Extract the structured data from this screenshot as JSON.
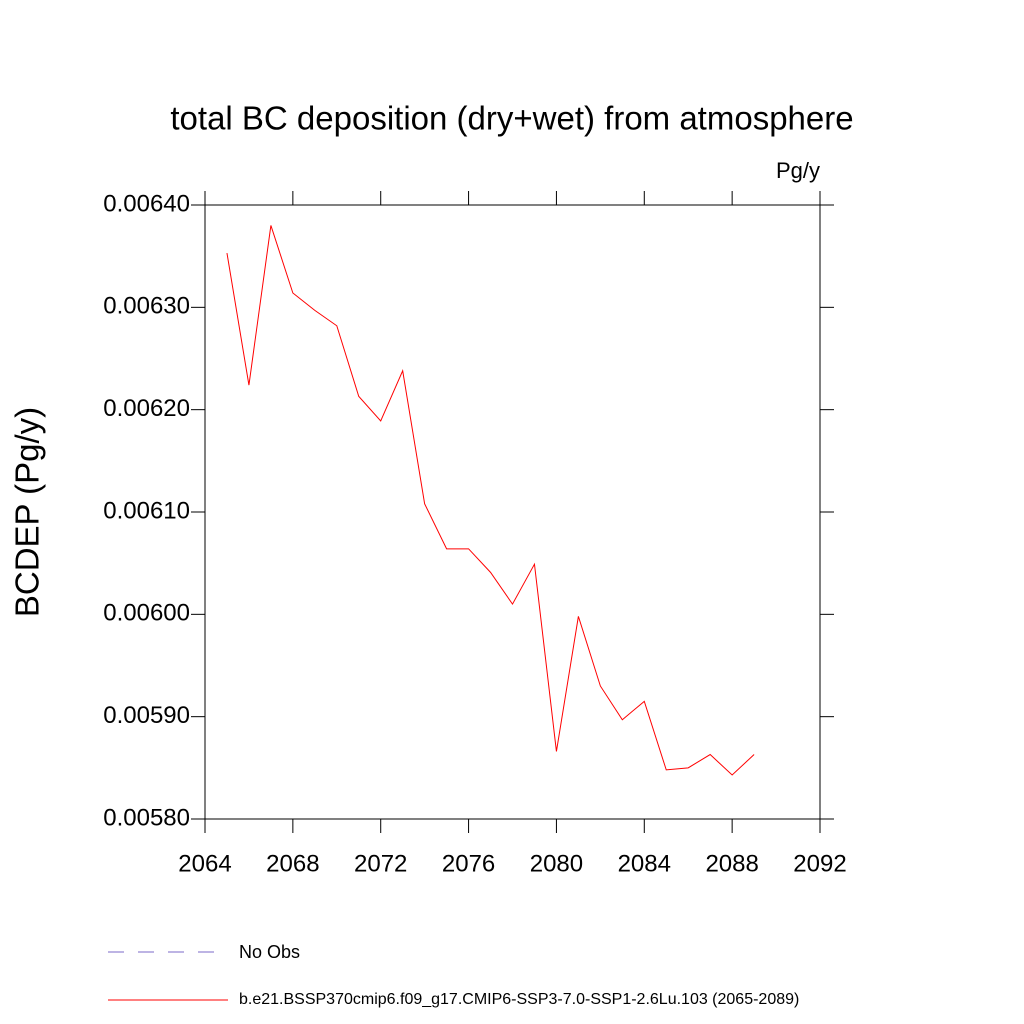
{
  "chart_data": {
    "type": "line",
    "title": "total BC deposition (dry+wet) from atmosphere",
    "units": "Pg/y",
    "ylabel": "BCDEP  (Pg/y)",
    "x": [
      2065,
      2066,
      2067,
      2068,
      2069,
      2070,
      2071,
      2072,
      2073,
      2074,
      2075,
      2076,
      2077,
      2078,
      2079,
      2080,
      2081,
      2082,
      2083,
      2084,
      2085,
      2086,
      2087,
      2088,
      2089
    ],
    "series": [
      {
        "name": "b.e21.BSSP370cmip6.f09_g17.CMIP6-SSP3-7.0-SSP1-2.6Lu.103 (2065-2089)",
        "color": "#ff0000",
        "values": [
          0.006353,
          0.006224,
          0.00638,
          0.006314,
          0.006297,
          0.006282,
          0.006213,
          0.006189,
          0.006238,
          0.006108,
          0.006064,
          0.006064,
          0.006041,
          0.00601,
          0.006049,
          0.005866,
          0.005998,
          0.00593,
          0.005897,
          0.005915,
          0.005848,
          0.00585,
          0.005863,
          0.005843,
          0.005863
        ]
      }
    ],
    "obs_legend": {
      "name": "No Obs",
      "color": "#7b68c8"
    },
    "xlim": [
      2064,
      2092
    ],
    "xticks": [
      2064,
      2068,
      2072,
      2076,
      2080,
      2084,
      2088,
      2092
    ],
    "ylim": [
      0.0058,
      0.0064
    ],
    "yticks": [
      {
        "value": 0.0058,
        "label": "0.00580"
      },
      {
        "value": 0.0059,
        "label": "0.00590"
      },
      {
        "value": 0.006,
        "label": "0.00600"
      },
      {
        "value": 0.0061,
        "label": "0.00610"
      },
      {
        "value": 0.0062,
        "label": "0.00620"
      },
      {
        "value": 0.0063,
        "label": "0.00630"
      },
      {
        "value": 0.0064,
        "label": "0.00640"
      }
    ]
  }
}
